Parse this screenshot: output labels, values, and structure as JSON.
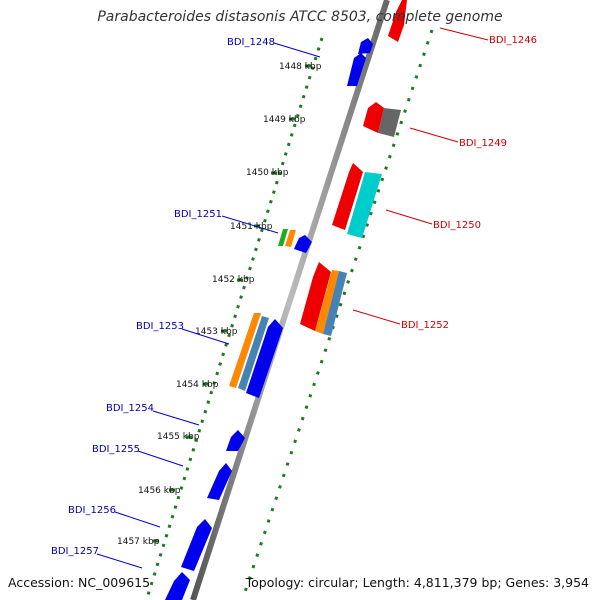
{
  "title": "Parabacteroides distasonis ATCC 8503, complete genome",
  "footer": {
    "accession": "Accession: NC_009615",
    "summary": "Topology: circular; Length: 4,811,379 bp; Genes: 3,954"
  },
  "colors": {
    "backbone": "#8c8c8c",
    "tick": "#1f7a1f",
    "left_gene_label": "#0000aa",
    "right_gene_label": "#cc0000",
    "blue_gene": "#0000ee",
    "red_gene": "#ee0000",
    "cyan_gene": "#00cccc",
    "grey_gene": "#666666",
    "orange_gene": "#ff8800",
    "steelblue_gene": "#4682b4",
    "green_gene": "#22aa22"
  },
  "kbp_ticks": [
    "1448 kbp",
    "1449 kbp",
    "1450 kbp",
    "1451 kbp",
    "1452 kbp",
    "1453 kbp",
    "1454 kbp",
    "1455 kbp",
    "1456 kbp",
    "1457 kbp"
  ],
  "left_gene_labels": [
    "BDI_1248",
    "BDI_1251",
    "BDI_1253",
    "BDI_1254",
    "BDI_1255",
    "BDI_1256",
    "BDI_1257"
  ],
  "right_gene_labels": [
    "BDI_1246",
    "BDI_1249",
    "BDI_1250",
    "BDI_1252"
  ]
}
